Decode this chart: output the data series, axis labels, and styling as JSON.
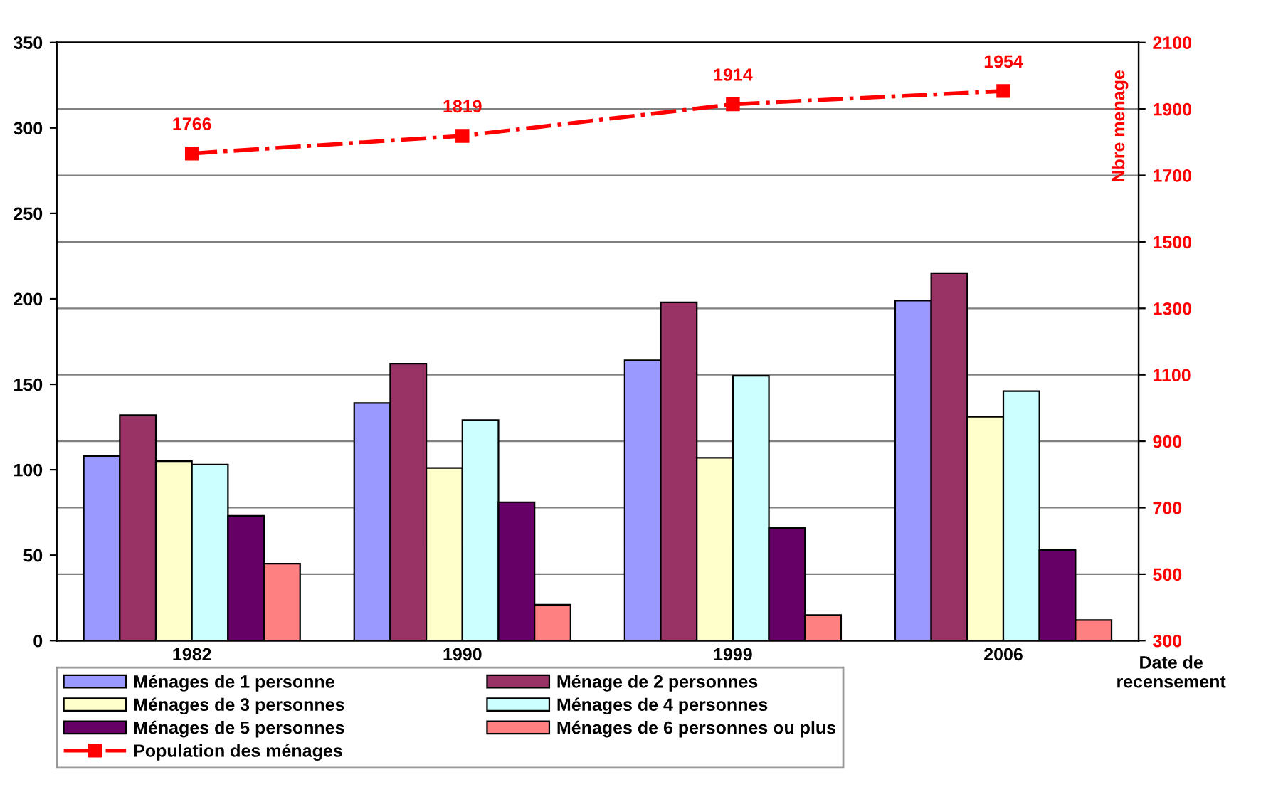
{
  "chart_data": {
    "type": "bar",
    "categories": [
      "1982",
      "1990",
      "1999",
      "2006"
    ],
    "xlabel": "Date de\nrecensement",
    "y2label": "Nbre menage",
    "ylim": [
      0,
      350
    ],
    "yticks": [
      0,
      50,
      100,
      150,
      200,
      250,
      300,
      350
    ],
    "y2lim": [
      300,
      2100
    ],
    "y2ticks": [
      300,
      500,
      700,
      900,
      1100,
      1300,
      1500,
      1700,
      1900,
      2100
    ],
    "grid": "y2",
    "legend": "bottom",
    "series": [
      {
        "name": "Ménages de 1 personne",
        "color": "#9999ff",
        "values": [
          108,
          139,
          164,
          199
        ]
      },
      {
        "name": "Ménage de 2 personnes",
        "color": "#993366",
        "values": [
          132,
          162,
          198,
          215
        ]
      },
      {
        "name": "Ménages de 3 personnes",
        "color": "#ffffcc",
        "values": [
          105,
          101,
          107,
          131
        ]
      },
      {
        "name": "Ménages de 4 personnes",
        "color": "#ccffff",
        "values": [
          103,
          129,
          155,
          146
        ]
      },
      {
        "name": "Ménages de 5 personnes",
        "color": "#660066",
        "values": [
          73,
          81,
          66,
          53
        ]
      },
      {
        "name": "Ménages de 6 personnes ou plus",
        "color": "#ff8080",
        "values": [
          45,
          21,
          15,
          12
        ]
      },
      {
        "name": "Population des ménages",
        "type": "line",
        "axis": "y2",
        "color": "#ff0000",
        "marker": "square",
        "line_style": "dashdot",
        "data_labels": true,
        "values": [
          1766,
          1819,
          1914,
          1954
        ]
      }
    ]
  }
}
